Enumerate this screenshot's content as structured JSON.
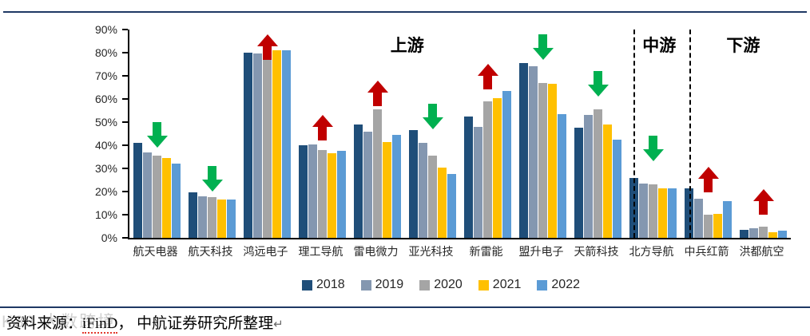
{
  "chart_data": {
    "type": "bar",
    "categories": [
      "航天电器",
      "航天科技",
      "鸿远电子",
      "理工导航",
      "雷电微力",
      "亚光科技",
      "新雷能",
      "盟升电子",
      "天箭科技",
      "北方导航",
      "中兵红箭",
      "洪都航空"
    ],
    "series": [
      {
        "name": "2018",
        "color": "#1F4E79",
        "values": [
          41,
          19.5,
          80,
          40,
          49,
          46.5,
          52.5,
          75.5,
          47.5,
          26,
          21.5,
          3.5
        ]
      },
      {
        "name": "2019",
        "color": "#8497B0",
        "values": [
          37,
          18,
          79.5,
          40.5,
          46,
          41,
          48,
          74,
          53,
          23.5,
          17,
          4
        ]
      },
      {
        "name": "2020",
        "color": "#A5A5A5",
        "values": [
          35.5,
          17.5,
          80,
          38,
          55.5,
          35.5,
          59,
          67,
          55.5,
          23,
          10,
          5
        ]
      },
      {
        "name": "2021",
        "color": "#FFC000",
        "values": [
          34.5,
          16.5,
          81,
          36.5,
          41.5,
          30.5,
          60.5,
          66.5,
          49,
          21.5,
          10.5,
          2.5
        ]
      },
      {
        "name": "2022",
        "color": "#5B9BD5",
        "values": [
          32,
          16.5,
          81,
          37.5,
          44.5,
          27.5,
          63.5,
          53.5,
          42.5,
          21.5,
          16,
          3
        ]
      }
    ],
    "ylim": [
      0,
      90
    ],
    "ytick_step": 10,
    "ytick_suffix": "%",
    "grid": false,
    "legend_position": "bottom",
    "annotations": {
      "arrows": [
        {
          "category": "航天电器",
          "direction": "down",
          "color": "#00B050",
          "bottom_pct": 39
        },
        {
          "category": "航天科技",
          "direction": "down",
          "color": "#00B050",
          "bottom_pct": 20
        },
        {
          "category": "鸿远电子",
          "direction": "up",
          "color": "#C00000",
          "bottom_pct": 77
        },
        {
          "category": "理工导航",
          "direction": "up",
          "color": "#C00000",
          "bottom_pct": 42
        },
        {
          "category": "雷电微力",
          "direction": "up",
          "color": "#C00000",
          "bottom_pct": 57
        },
        {
          "category": "亚光科技",
          "direction": "down",
          "color": "#00B050",
          "bottom_pct": 47
        },
        {
          "category": "新雷能",
          "direction": "up",
          "color": "#C00000",
          "bottom_pct": 64
        },
        {
          "category": "盟升电子",
          "direction": "down",
          "color": "#00B050",
          "bottom_pct": 77
        },
        {
          "category": "天箭科技",
          "direction": "down",
          "color": "#00B050",
          "bottom_pct": 61
        },
        {
          "category": "北方导航",
          "direction": "down",
          "color": "#00B050",
          "bottom_pct": 33
        },
        {
          "category": "中兵红箭",
          "direction": "up",
          "color": "#C00000",
          "bottom_pct": 19.5
        },
        {
          "category": "洪都航空",
          "direction": "up",
          "color": "#C00000",
          "bottom_pct": 10
        }
      ],
      "sections": [
        {
          "label": "上游",
          "from_index": 0,
          "to_index": 8,
          "label_x_pct": 42
        },
        {
          "label": "中游",
          "from_index": 9,
          "to_index": 9,
          "label_x_pct": 80.1
        },
        {
          "label": "下游",
          "from_index": 10,
          "to_index": 11,
          "label_x_pct": 92.8
        }
      ],
      "dividers_x_pct": [
        76.2,
        84.7
      ]
    }
  },
  "footer": {
    "source_prefix": "资料来源：",
    "source_database": "iFinD",
    "source_suffix": "， 中航证券研究所整理",
    "paragraph_mark": "↵",
    "watermark": "K88 大数跨境"
  },
  "colors": {
    "divider_rule": "#1F3864",
    "axis": "#000000",
    "arrow_up": "#C00000",
    "arrow_down": "#00B050"
  }
}
